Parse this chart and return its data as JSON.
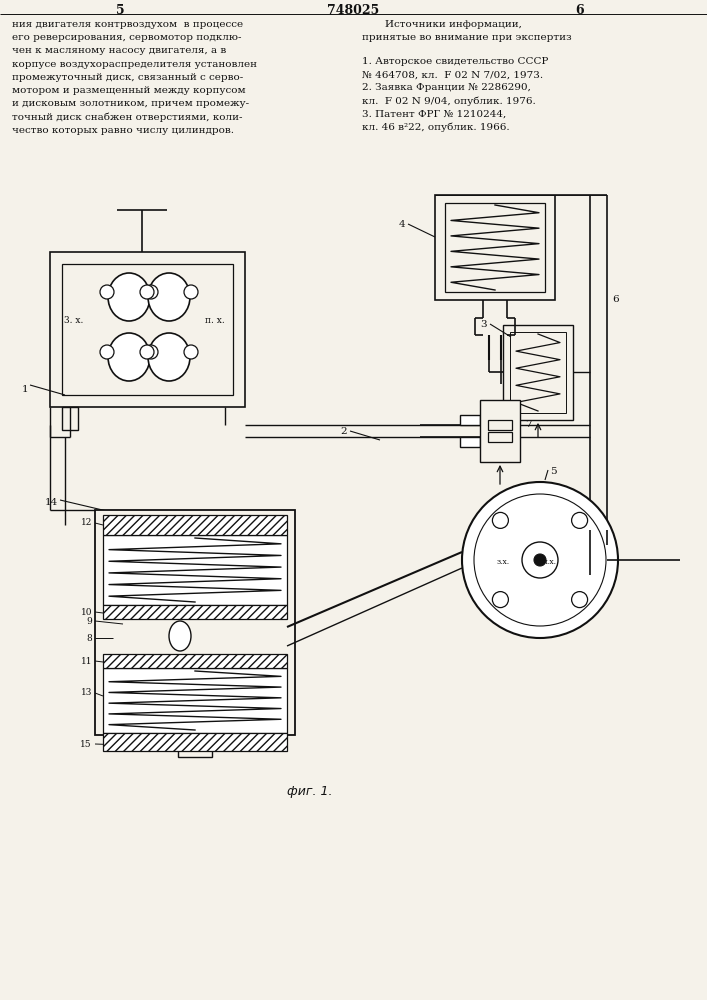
{
  "page_num_left": "5",
  "page_num_right": "6",
  "patent_num": "748025",
  "left_column": [
    "ния двигателя контрвоздухом  в процессе",
    "его реверсирования, сервомотор подклю-",
    "чен к масляному насосу двигателя, а в",
    "корпусе воздухораспределителя установлен",
    "промежуточный диск, связанный с серво-",
    "мотором и размещенный между корпусом",
    "и дисковым золотником, причем промежу-",
    "точный диск снабжен отверстиями, коли-",
    "чество которых равно числу цилиндров."
  ],
  "right_col_title": "Источники информации,",
  "right_col_subtitle": "принятые во внимание при экспертиз",
  "references": [
    "1. Авторское свидетельство СССР",
    "№ 464708, кл.  F 02 N 7/02, 1973.",
    "2. Заявка Франции № 2286290,",
    "кл.  F 02 N 9/04, опублик. 1976.",
    "3. Патент ФРГ № 1210244,",
    "кл. 46 в²22, опублик. 1966."
  ],
  "fig_caption": "фиг. 1.",
  "bg_color": "#f5f2ea",
  "line_color": "#111111"
}
